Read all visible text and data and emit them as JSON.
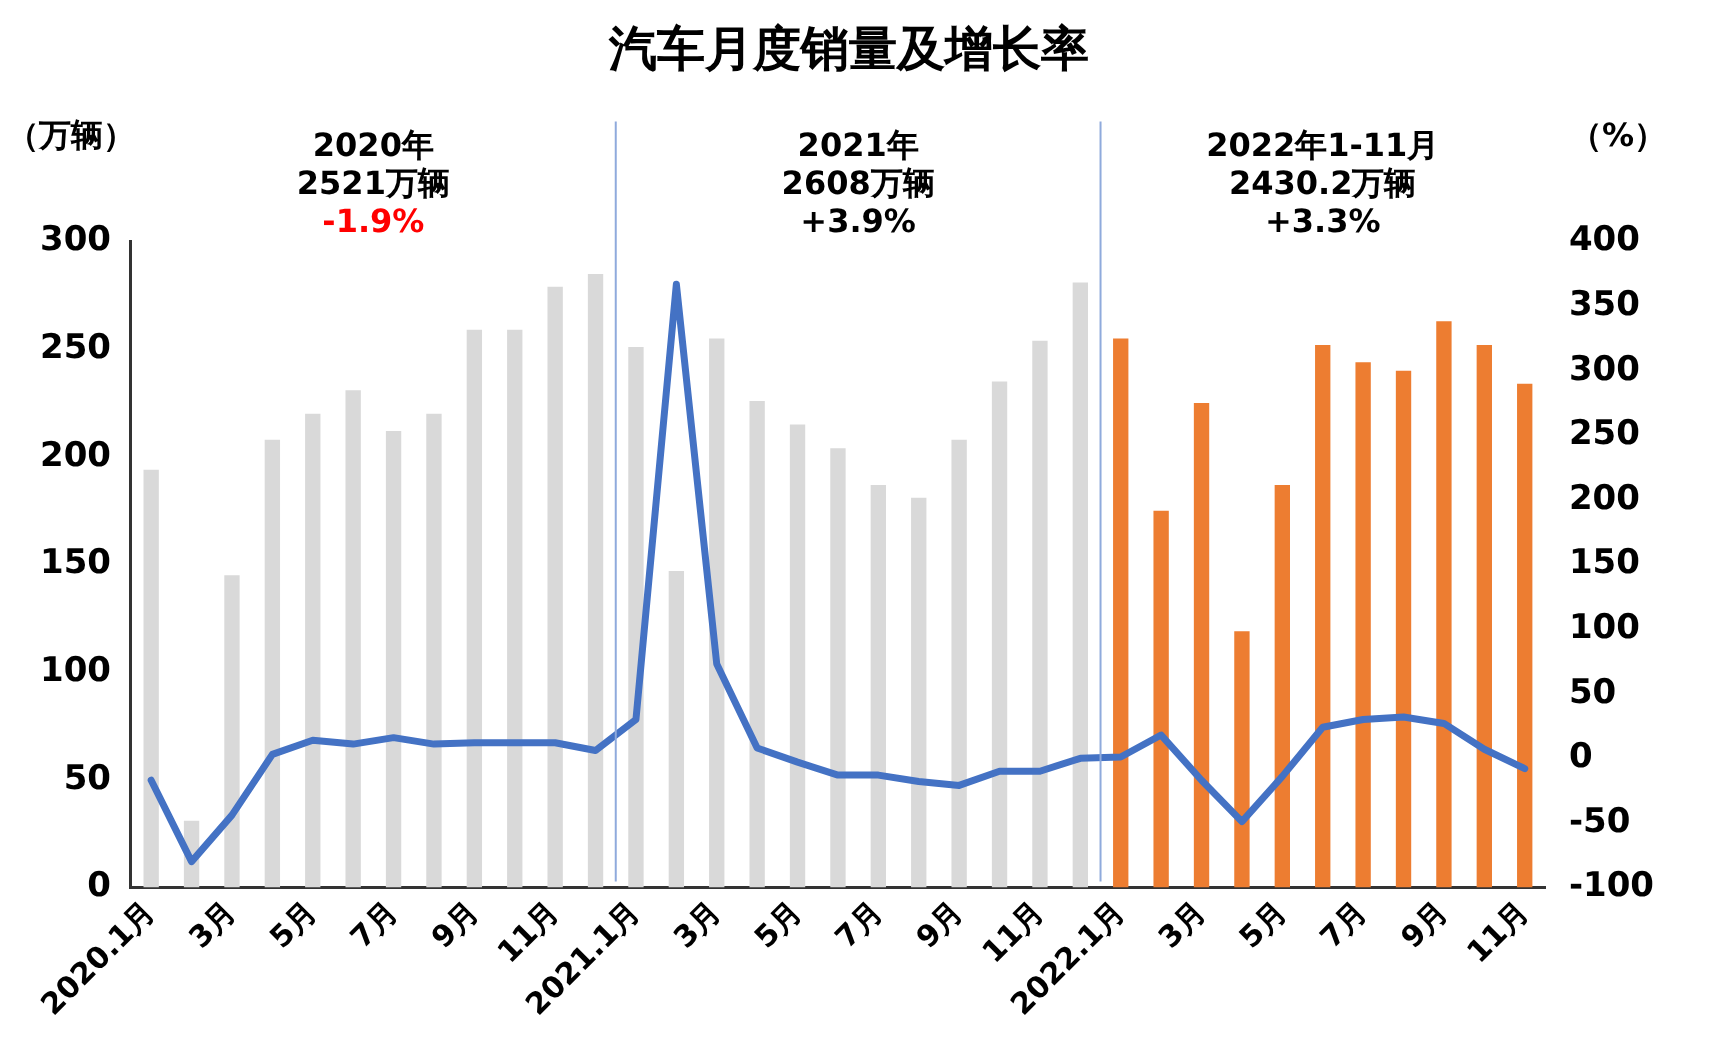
{
  "chart_data": {
    "type": "bar",
    "title": "汽车月度销量及增长率",
    "ylabel": "（万辆）",
    "y2label": "（%）",
    "annotations": [
      "2020年",
      "2521万辆",
      "-1.9%",
      "2021年",
      "2608万辆",
      "+3.9%",
      "2022年1-11月",
      "2430.2万辆",
      "+3.3%"
    ],
    "categories": [
      "2020.1月",
      null,
      "3月",
      null,
      "5月",
      null,
      "7月",
      null,
      "9月",
      null,
      "11月",
      null,
      "2021.1月",
      null,
      "3月",
      null,
      "5月",
      null,
      "7月",
      null,
      "9月",
      null,
      "11月",
      null,
      "2022.1月",
      null,
      "3月",
      null,
      "5月",
      null,
      "7月",
      null,
      "9月",
      null,
      "11月"
    ],
    "series": [
      {
        "colors": [
          "#d9d9d9",
          "#d9d9d9",
          "#d9d9d9",
          "#d9d9d9",
          "#d9d9d9",
          "#d9d9d9",
          "#d9d9d9",
          "#d9d9d9",
          "#d9d9d9",
          "#d9d9d9",
          "#d9d9d9",
          "#d9d9d9",
          "#d9d9d9",
          "#d9d9d9",
          "#d9d9d9",
          "#d9d9d9",
          "#d9d9d9",
          "#d9d9d9",
          "#d9d9d9",
          "#d9d9d9",
          "#d9d9d9",
          "#d9d9d9",
          "#d9d9d9",
          "#d9d9d9",
          "#ed7d31",
          "#ed7d31",
          "#ed7d31",
          "#ed7d31",
          "#ed7d31",
          "#ed7d31",
          "#ed7d31",
          "#ed7d31",
          "#ed7d31",
          "#ed7d31",
          "#ed7d31"
        ],
        "values": [
          194,
          31,
          145,
          208,
          220,
          231,
          212,
          220,
          259,
          259,
          279,
          285,
          251,
          147,
          255,
          226,
          215,
          204,
          187,
          181,
          208,
          235,
          254,
          281,
          255,
          175,
          225,
          119,
          187,
          252,
          244,
          240,
          263,
          252,
          234
        ]
      },
      {
        "type": "line",
        "axis": "y2",
        "color": "#4472c4",
        "values": [
          -17,
          -80,
          -44,
          3,
          14,
          11,
          16,
          11,
          12,
          12,
          12,
          6,
          30,
          367,
          73,
          8,
          -3,
          -13,
          -13,
          -18,
          -21,
          -10,
          -10,
          0,
          1,
          18,
          -17,
          -49,
          -14,
          24,
          30,
          32,
          27,
          7,
          -8
        ]
      }
    ],
    "ylim": [
      0,
      300
    ],
    "yticks": [
      0,
      50,
      100,
      150,
      200,
      250,
      300
    ],
    "y2lim": [
      -100,
      400
    ],
    "y2ticks": [
      -100,
      -50,
      0,
      50,
      100,
      150,
      200,
      250,
      300,
      350,
      400
    ],
    "grid": false,
    "legend": false,
    "marker": "none",
    "line_style": "solid"
  }
}
